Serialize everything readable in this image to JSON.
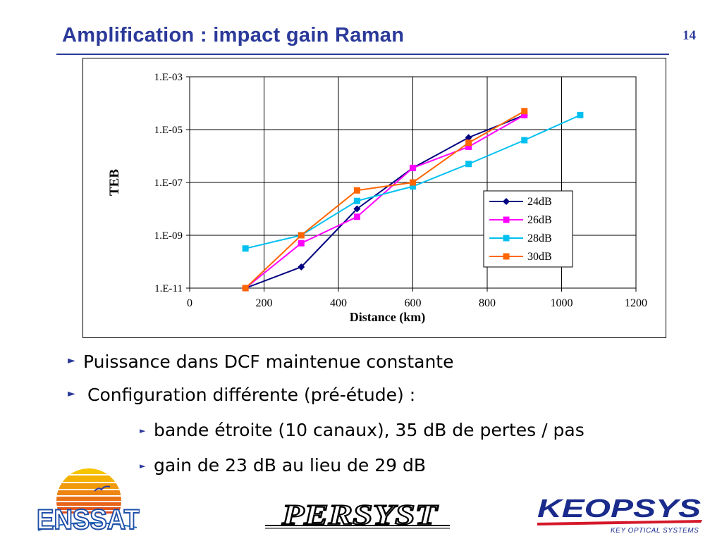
{
  "slide": {
    "title": "Amplification : impact gain Raman",
    "page_number": "14"
  },
  "chart_data": {
    "type": "line",
    "title": "",
    "xlabel": "Distance (km)",
    "ylabel": "TEB",
    "y_scale": "log10",
    "xlim": [
      0,
      1200
    ],
    "ylim_exponent": [
      -11,
      -3
    ],
    "x_ticks": [
      0,
      200,
      400,
      600,
      800,
      1000,
      1200
    ],
    "x_tick_labels": [
      "0",
      "200",
      "400",
      "600",
      "800",
      "1000",
      "1200"
    ],
    "y_ticks_exponent": [
      -3,
      -5,
      -7,
      -9,
      -11
    ],
    "y_tick_labels": [
      "1.E-03",
      "1.E-05",
      "1.E-07",
      "1.E-09",
      "1.E-11"
    ],
    "grid": "vertical and horizontal major gridlines",
    "legend_position": "lower-right",
    "series_values_note": "y values are base-10 exponents of TEB",
    "series": [
      {
        "name": "24dB",
        "color": "#000080",
        "marker": "diamond",
        "x": [
          150,
          300,
          450,
          600,
          750,
          900
        ],
        "y": [
          -11.0,
          -10.2,
          -8.0,
          -6.45,
          -5.3,
          -4.45
        ]
      },
      {
        "name": "26dB",
        "color": "#ff00ff",
        "marker": "square",
        "x": [
          150,
          300,
          450,
          600,
          750,
          900
        ],
        "y": [
          -11.0,
          -9.3,
          -8.3,
          -6.45,
          -5.65,
          -4.45
        ]
      },
      {
        "name": "28dB",
        "color": "#00c0f0",
        "marker": "square",
        "x": [
          150,
          300,
          450,
          600,
          750,
          900,
          1050
        ],
        "y": [
          -9.5,
          -9.0,
          -7.7,
          -7.15,
          -6.3,
          -5.4,
          -4.45
        ]
      },
      {
        "name": "30dB",
        "color": "#ff6600",
        "marker": "square",
        "x": [
          150,
          300,
          450,
          600,
          750,
          900
        ],
        "y": [
          -11.0,
          -9.0,
          -7.3,
          -7.0,
          -5.5,
          -4.3
        ]
      }
    ]
  },
  "bullets": [
    {
      "text": "Puissance dans DCF maintenue constante"
    },
    {
      "text": "Configuration différente (pré-étude) :"
    },
    {
      "text": "bande étroite (10 canaux), 35 dB de pertes / pas"
    },
    {
      "text": "gain de 23 dB au lieu de 29 dB"
    }
  ],
  "logos": {
    "left": "ENSSAT",
    "middle": "PERSYST",
    "right_main": "KEOPSYS",
    "right_tagline": "KEY OPTICAL SYSTEMS"
  },
  "colors": {
    "title_blue": "#2b3a9a",
    "keopsys_blue": "#1a2b8c",
    "keopsys_red": "#d4182a"
  }
}
